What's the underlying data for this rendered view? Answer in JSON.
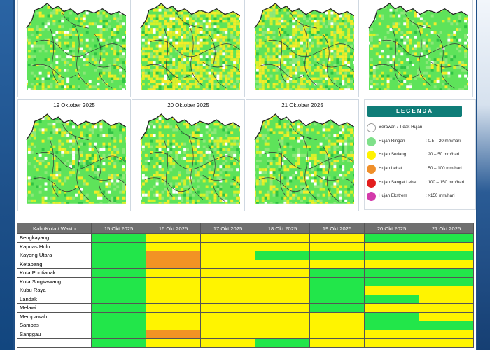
{
  "maps": [
    {
      "id": "m1",
      "title": ""
    },
    {
      "id": "m2",
      "title": ""
    },
    {
      "id": "m3",
      "title": ""
    },
    {
      "id": "m4",
      "title": ""
    },
    {
      "id": "m5",
      "title": "19 Oktober 2025"
    },
    {
      "id": "m6",
      "title": "20 Oktober 2025"
    },
    {
      "id": "m7",
      "title": "21 Oktober 2025"
    }
  ],
  "legend": {
    "title": "LEGENDA",
    "items": [
      {
        "label": "Berawan / Tidak Hujan",
        "range": "",
        "color": "#ffffff"
      },
      {
        "label": "Hujan Ringan",
        "range": ": 0.5 – 20 mm/hari",
        "color": "#7fe08a"
      },
      {
        "label": "Hujan Sedang",
        "range": ": 20 – 50 mm/hari",
        "color": "#fff200"
      },
      {
        "label": "Hujan Lebat",
        "range": ": 50 – 100 mm/hari",
        "color": "#ef8f2a"
      },
      {
        "label": "Hujan Sangat Lebat",
        "range": ": 100 – 150 mm/hari",
        "color": "#e31d1d"
      },
      {
        "label": "Hujan Ekstrem",
        "range": ": >150 mm/hari",
        "color": "#d33aaa"
      }
    ]
  },
  "table": {
    "header": [
      "Kab./Kota / Waktu",
      "15 Okt 2025",
      "16 Okt 2025",
      "17 Okt 2025",
      "18 Okt 2025",
      "19 Okt 2025",
      "20 Okt 2025",
      "21 Okt 2025"
    ],
    "rows": [
      {
        "name": "Bengkayang",
        "levels": [
          "ringan",
          "sedang",
          "sedang",
          "sedang",
          "sedang",
          "ringan",
          "ringan"
        ]
      },
      {
        "name": "Kapuas Hulu",
        "levels": [
          "ringan",
          "sedang",
          "sedang",
          "sedang",
          "sedang",
          "sedang",
          "sedang"
        ]
      },
      {
        "name": "Kayong Utara",
        "levels": [
          "ringan",
          "lebat",
          "sedang",
          "ringan",
          "ringan",
          "ringan",
          "ringan"
        ]
      },
      {
        "name": "Ketapang",
        "levels": [
          "ringan",
          "lebat",
          "sedang",
          "sedang",
          "sedang",
          "sedang",
          "sedang"
        ]
      },
      {
        "name": "Kota Pontianak",
        "levels": [
          "ringan",
          "sedang",
          "sedang",
          "sedang",
          "ringan",
          "ringan",
          "ringan"
        ]
      },
      {
        "name": "Kota Singkawang",
        "levels": [
          "ringan",
          "sedang",
          "sedang",
          "sedang",
          "ringan",
          "ringan",
          "ringan"
        ]
      },
      {
        "name": "Kubu Raya",
        "levels": [
          "ringan",
          "sedang",
          "sedang",
          "sedang",
          "ringan",
          "sedang",
          "sedang"
        ]
      },
      {
        "name": "Landak",
        "levels": [
          "ringan",
          "sedang",
          "sedang",
          "sedang",
          "ringan",
          "ringan",
          "sedang"
        ]
      },
      {
        "name": "Melawi",
        "levels": [
          "ringan",
          "sedang",
          "sedang",
          "sedang",
          "ringan",
          "sedang",
          "sedang"
        ]
      },
      {
        "name": "Mempawah",
        "levels": [
          "ringan",
          "sedang",
          "sedang",
          "sedang",
          "sedang",
          "ringan",
          "sedang"
        ]
      },
      {
        "name": "Sambas",
        "levels": [
          "ringan",
          "sedang",
          "sedang",
          "sedang",
          "sedang",
          "ringan",
          "ringan"
        ]
      },
      {
        "name": "Sanggau",
        "levels": [
          "ringan",
          "lebat",
          "sedang",
          "sedang",
          "sedang",
          "sedang",
          "sedang"
        ]
      },
      {
        "name": "",
        "levels": [
          "ringan",
          "sedang",
          "sedang",
          "ringan",
          "sedang",
          "sedang",
          "sedang"
        ]
      }
    ]
  }
}
